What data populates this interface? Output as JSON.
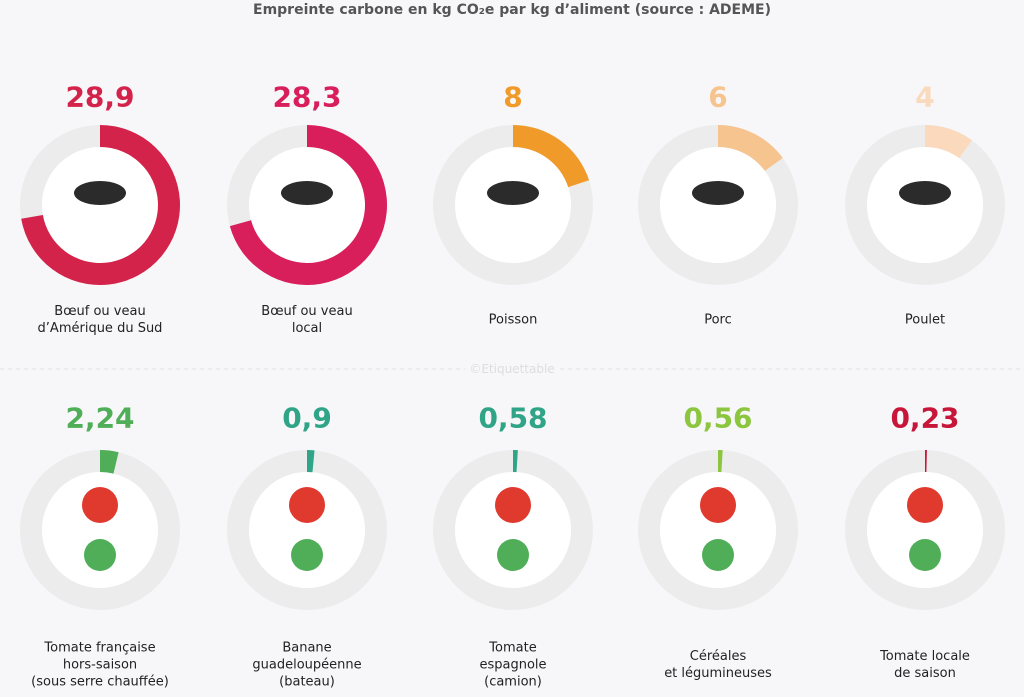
{
  "title": "Empreinte carbone en kg CO₂e par kg d’aliment (source : ADEME)",
  "watermark": "©Etiquettable",
  "chart_data": [
    {
      "type": "gauge",
      "ylim": [
        0,
        40
      ],
      "categories": [
        "Bœuf ou veau\nd’Amérique du Sud",
        "Bœuf ou veau\nlocal",
        "Poisson",
        "Porc",
        "Poulet"
      ],
      "values": [
        28.9,
        28.3,
        8,
        6,
        4
      ],
      "value_labels": [
        "28,9",
        "28,3",
        "8",
        "6",
        "4"
      ],
      "colors": [
        "#d4234a",
        "#d81e5b",
        "#f09a2a",
        "#f6c48f",
        "#fad9bd"
      ]
    },
    {
      "type": "gauge",
      "ylim": [
        0,
        60
      ],
      "categories": [
        "Tomate française\nhors-saison\n(sous serre chauffée)",
        "Banane\nguadeloupéenne\n(bateau)",
        "Tomate\nespagnole\n(camion)",
        "Céréales\net légumineuses",
        "Tomate locale\nde saison"
      ],
      "values": [
        2.24,
        0.9,
        0.58,
        0.56,
        0.23
      ],
      "value_labels": [
        "2,24",
        "0,9",
        "0,58",
        "0,56",
        "0,23"
      ],
      "colors": [
        "#4fae57",
        "#2fa487",
        "#2fa487",
        "#8cc63f",
        "#c8163a"
      ]
    }
  ]
}
